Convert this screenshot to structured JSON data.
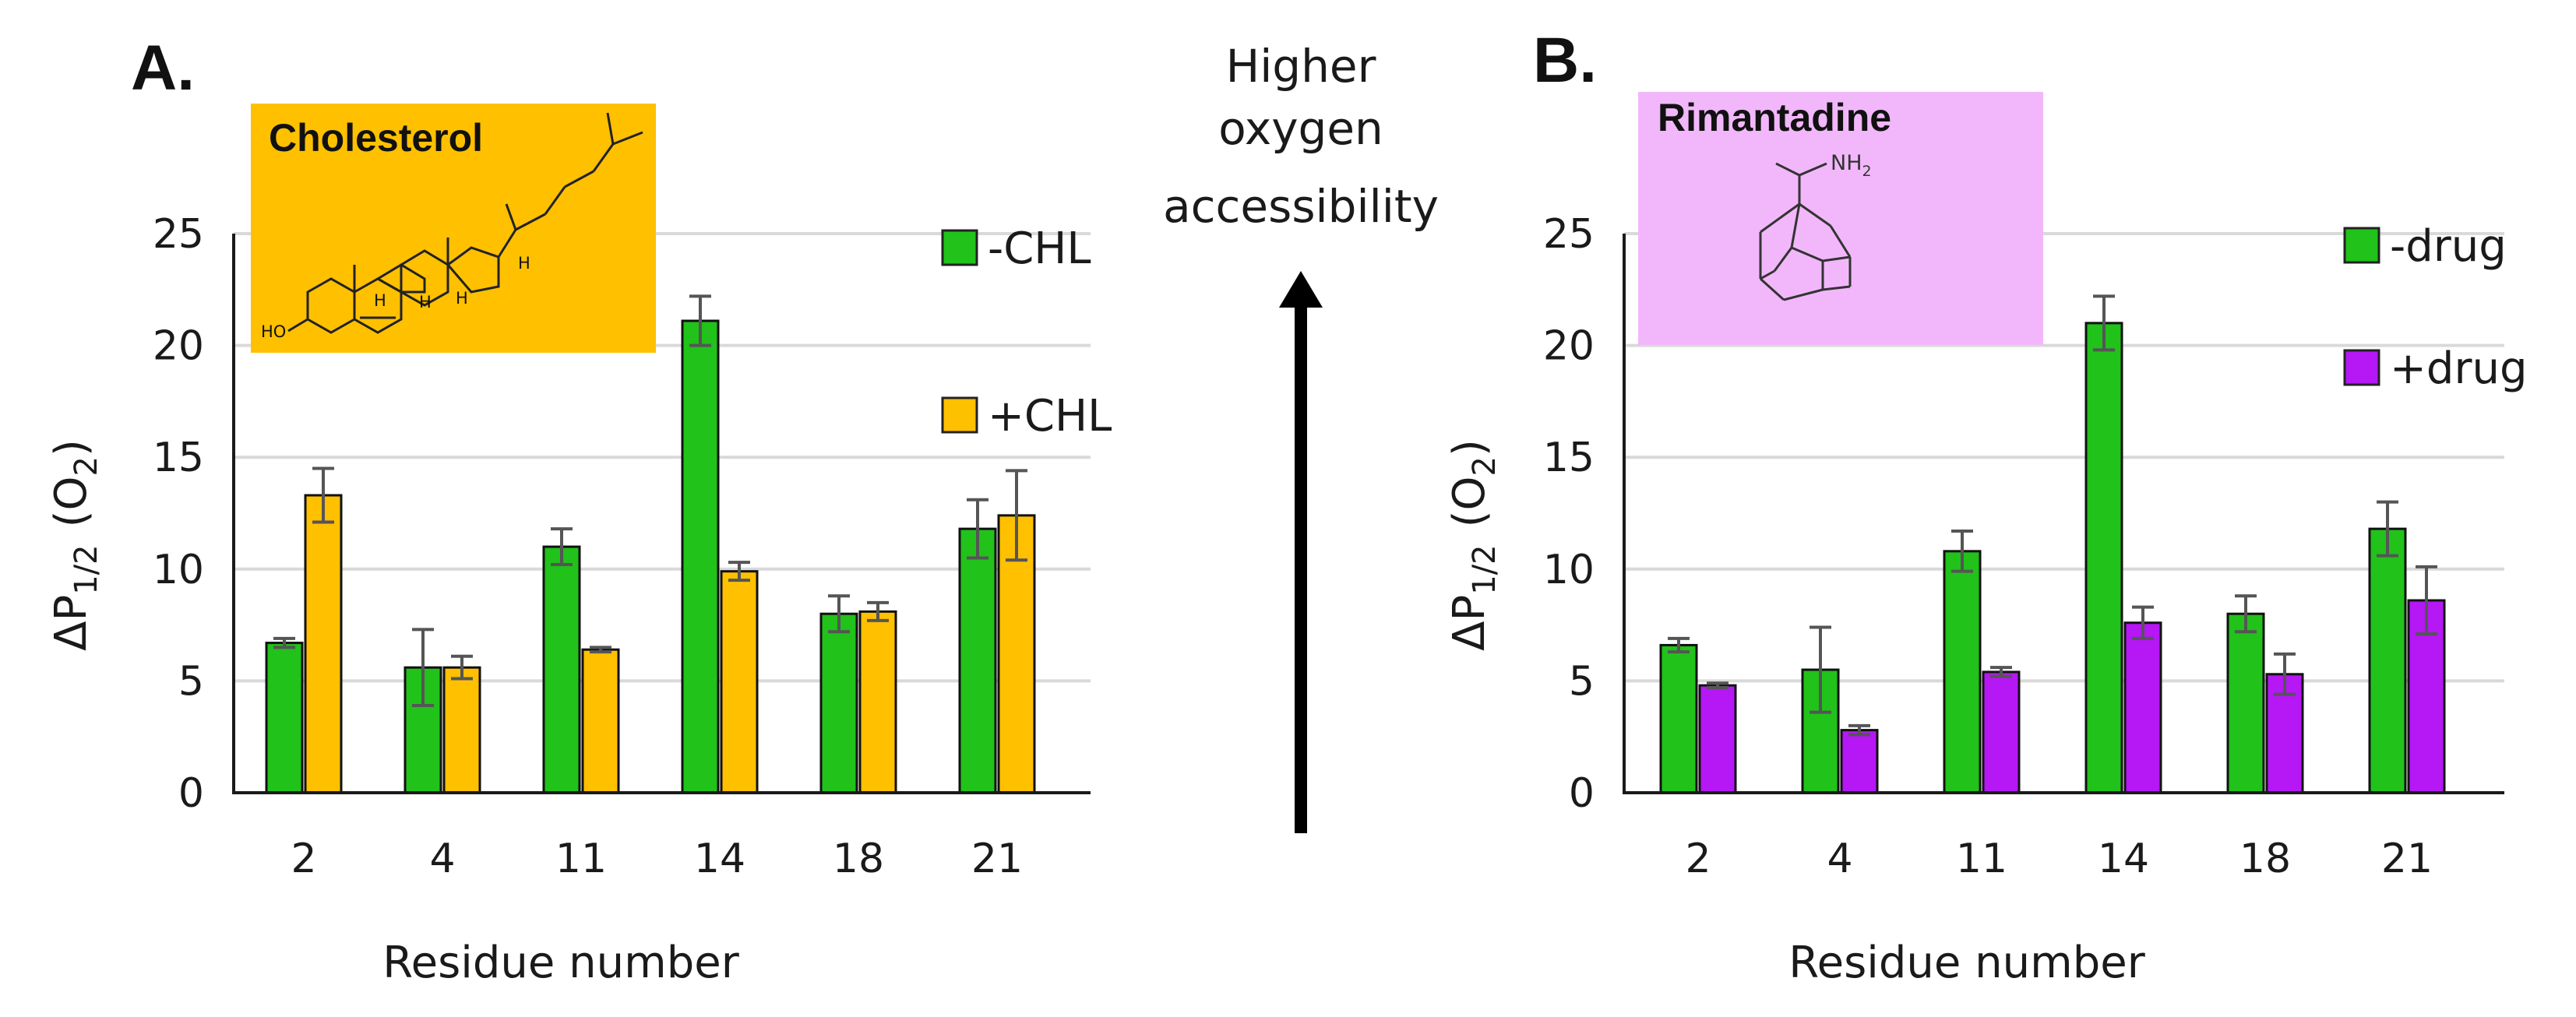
{
  "colors": {
    "green": "#21c21a",
    "orange": "#ffc000",
    "purple": "#b517f5",
    "cholesterol_box": "#ffc000",
    "rimantadine_box": "#f2b7fa",
    "grid": "#d9d9d9",
    "error_bar": "#555555",
    "axis": "#1a1a1a"
  },
  "center": {
    "arrow_lines": [
      "Higher",
      "oxygen",
      "accessibility"
    ],
    "arrow_icon": "up-arrow-icon"
  },
  "chart_data": [
    {
      "panel": "A.",
      "type": "bar",
      "title": "",
      "structure_label": "Cholesterol",
      "structure_text": {
        "oh": "HO",
        "h1": "H",
        "h2": "H",
        "h3": "H",
        "h4": "H"
      },
      "xlabel": "Residue number",
      "ylabel_main": "ΔP",
      "ylabel_sub": "1/2",
      "ylabel_tail": "(O",
      "ylabel_o2sub": "2",
      "ylabel_close": ")",
      "ylim": [
        0,
        25
      ],
      "yticks": [
        "0",
        "5",
        "10",
        "15",
        "20",
        "25"
      ],
      "grid": true,
      "legend_position": "right",
      "categories": [
        "2",
        "4",
        "11",
        "14",
        "18",
        "21"
      ],
      "series": [
        {
          "name": "-CHL",
          "color": "#21c21a",
          "values": [
            6.7,
            5.6,
            11.0,
            21.1,
            8.0,
            11.8
          ],
          "errors": [
            0.2,
            1.7,
            0.8,
            1.1,
            0.8,
            1.3
          ]
        },
        {
          "name": "+CHL",
          "color": "#ffc000",
          "values": [
            13.3,
            5.6,
            6.4,
            9.9,
            8.1,
            12.4
          ],
          "errors": [
            1.2,
            0.5,
            0.1,
            0.4,
            0.4,
            2.0
          ]
        }
      ]
    },
    {
      "panel": "B.",
      "type": "bar",
      "title": "",
      "structure_label": "Rimantadine",
      "structure_text": {
        "nh2": "NH",
        "nh2_sub": "2"
      },
      "xlabel": "Residue number",
      "ylabel_main": "ΔP",
      "ylabel_sub": "1/2",
      "ylabel_tail": "(O",
      "ylabel_o2sub": "2",
      "ylabel_close": ")",
      "ylim": [
        0,
        25
      ],
      "yticks": [
        "0",
        "5",
        "10",
        "15",
        "20",
        "25"
      ],
      "grid": true,
      "legend_position": "right",
      "categories": [
        "2",
        "4",
        "11",
        "14",
        "18",
        "21"
      ],
      "series": [
        {
          "name": "-drug",
          "color": "#21c21a",
          "values": [
            6.6,
            5.5,
            10.8,
            21.0,
            8.0,
            11.8
          ],
          "errors": [
            0.3,
            1.9,
            0.9,
            1.2,
            0.8,
            1.2
          ]
        },
        {
          "name": "+drug",
          "color": "#b517f5",
          "values": [
            4.8,
            2.8,
            5.4,
            7.6,
            5.3,
            8.6
          ],
          "errors": [
            0.1,
            0.2,
            0.2,
            0.7,
            0.9,
            1.5
          ]
        }
      ]
    }
  ]
}
